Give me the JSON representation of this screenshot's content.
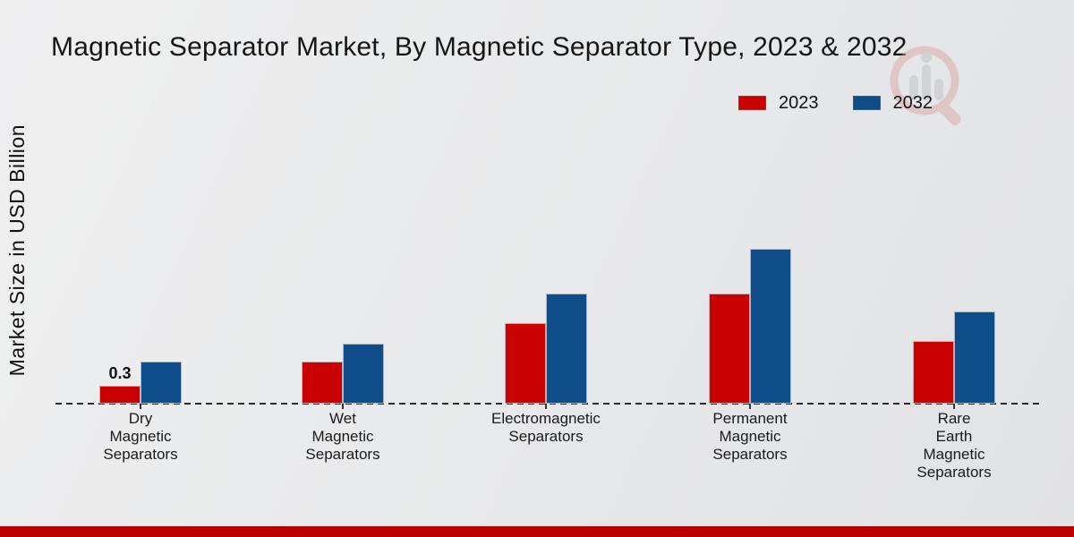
{
  "chart_data": {
    "type": "bar",
    "title": "Magnetic Separator Market, By Magnetic Separator Type, 2023 & 2032",
    "xlabel": "",
    "ylabel": "Market Size in USD Billion",
    "categories": [
      "Dry\nMagnetic\nSeparators",
      "Wet\nMagnetic\nSeparators",
      "Electromagnetic\nSeparators",
      "Permanent\nMagnetic\nSeparators",
      "Rare\nEarth\nMagnetic\nSeparators"
    ],
    "series": [
      {
        "name": "2023",
        "color": "#c90101",
        "values": [
          0.3,
          0.7,
          1.35,
          1.85,
          1.05
        ]
      },
      {
        "name": "2032",
        "color": "#0e4d8a",
        "values": [
          0.7,
          1.0,
          1.85,
          2.6,
          1.55
        ]
      }
    ],
    "annotations": [
      {
        "category_index": 0,
        "series_index": 0,
        "text": "0.3"
      }
    ],
    "ylim": [
      0,
      3
    ],
    "grid": false,
    "legend_position": "top-right",
    "baseline_style": "dashed"
  },
  "watermark": {
    "name": "market-research-logo-watermark",
    "ring_color": "#d89a9a",
    "bar_color": "#b7b7bb"
  },
  "footer": {
    "color": "#b80000"
  }
}
